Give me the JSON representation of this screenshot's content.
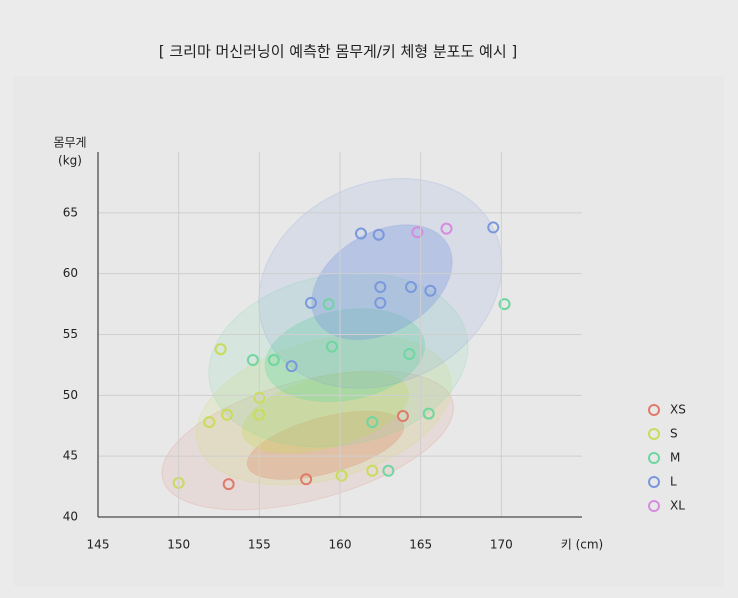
{
  "chart_data": {
    "type": "scatter",
    "title": "[ 크리마 머신러닝이 예측한 몸무게/키 체형 분포도 예시 ]",
    "xlabel": "키 (cm)",
    "ylabel": [
      "몸무게",
      "(kg)"
    ],
    "xlim": [
      145,
      175
    ],
    "ylim": [
      40,
      70
    ],
    "xticks": [
      145,
      150,
      155,
      160,
      165,
      170
    ],
    "yticks": [
      40,
      45,
      50,
      55,
      60,
      65
    ],
    "grid": true,
    "legend": "right",
    "series": [
      {
        "name": "XS",
        "color": "#e07a6a",
        "x": [
          153.1,
          157.9,
          163.9
        ],
        "values": [
          42.7,
          43.1,
          48.3
        ],
        "ellipses": [
          {
            "cx": 158.0,
            "cy": 46.3,
            "rx": 9.3,
            "ry": 4.9,
            "angle": -15,
            "opacity": 0.12
          },
          {
            "cx": 159.1,
            "cy": 45.9,
            "rx": 5.0,
            "ry": 2.3,
            "angle": -15,
            "opacity": 0.3
          }
        ]
      },
      {
        "name": "S",
        "color": "#c9dc5a",
        "x": [
          150.0,
          151.9,
          153.0,
          152.6,
          155.0,
          155.0,
          160.1,
          162.0
        ],
        "values": [
          42.8,
          47.8,
          48.4,
          53.8,
          49.8,
          48.4,
          43.4,
          43.8
        ],
        "ellipses": [
          {
            "cx": 159.0,
            "cy": 48.8,
            "rx": 8.1,
            "ry": 5.7,
            "angle": -15,
            "opacity": 0.15
          },
          {
            "cx": 159.1,
            "cy": 48.6,
            "rx": 5.3,
            "ry": 2.9,
            "angle": -15,
            "opacity": 0.3
          }
        ]
      },
      {
        "name": "M",
        "color": "#6fd6a0",
        "x": [
          154.6,
          155.9,
          159.3,
          159.5,
          164.3,
          165.5,
          163.0,
          170.2,
          162.0
        ],
        "values": [
          52.9,
          52.9,
          57.5,
          54.0,
          53.4,
          48.5,
          43.8,
          57.5,
          47.8
        ],
        "ellipses": [
          {
            "cx": 159.9,
            "cy": 52.9,
            "rx": 8.1,
            "ry": 7.0,
            "angle": -10,
            "opacity": 0.15
          },
          {
            "cx": 160.3,
            "cy": 53.3,
            "rx": 5.0,
            "ry": 3.7,
            "angle": -10,
            "opacity": 0.35
          }
        ]
      },
      {
        "name": "L",
        "color": "#7b98dc",
        "x": [
          157.0,
          158.2,
          161.3,
          162.4,
          162.5,
          162.5,
          164.4,
          165.6,
          169.5
        ],
        "values": [
          52.4,
          57.6,
          63.3,
          63.2,
          58.9,
          57.6,
          58.9,
          58.6,
          63.8
        ],
        "ellipses": [
          {
            "cx": 162.5,
            "cy": 59.2,
            "rx": 7.8,
            "ry": 8.2,
            "angle": -25,
            "opacity": 0.15
          },
          {
            "cx": 162.6,
            "cy": 59.3,
            "rx": 4.7,
            "ry": 4.1,
            "angle": -30,
            "opacity": 0.35
          }
        ]
      },
      {
        "name": "XL",
        "color": "#d78be0",
        "x": [
          164.8,
          166.6
        ],
        "values": [
          63.4,
          63.7
        ],
        "ellipses": []
      }
    ]
  }
}
